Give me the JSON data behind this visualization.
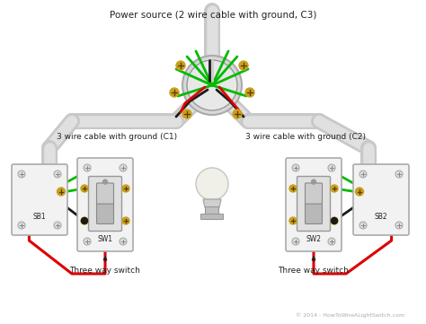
{
  "title": "Power source (2 wire cable with ground, C3)",
  "subtitle": "© 2014 - HowToWireALightSwitch.com",
  "label_c1": "3 wire cable with ground (C1)",
  "label_c2": "3 wire cable with ground (C2)",
  "label_sw1": "SW1",
  "label_sw2": "SW2",
  "label_sb1": "SB1",
  "label_sb2": "SB2",
  "label_three_way_1": "Three way switch",
  "label_three_way_2": "Three way switch",
  "bg_color": "#ffffff",
  "conduit_color": "#c8c8c8",
  "conduit_dark": "#aaaaaa",
  "wire_red": "#dd0000",
  "wire_green": "#00bb00",
  "wire_black": "#1a1a1a",
  "wire_white": "#cccccc",
  "switch_bg": "#f0f0f0",
  "switch_border": "#999999",
  "screw_color": "#c8a020",
  "text_color": "#222222",
  "text_color_copy": "#aaaaaa",
  "fig_width": 4.74,
  "fig_height": 3.61,
  "dpi": 100
}
